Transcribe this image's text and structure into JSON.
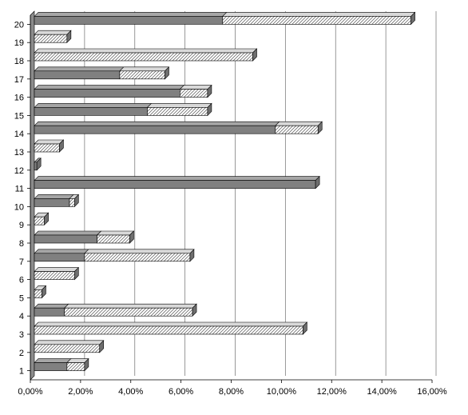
{
  "chart_data": {
    "type": "bar",
    "orientation": "horizontal",
    "stacked": true,
    "three_d": true,
    "title": "",
    "xlabel": "",
    "ylabel": "",
    "categories": [
      "1",
      "2",
      "3",
      "4",
      "5",
      "6",
      "7",
      "8",
      "9",
      "10",
      "11",
      "12",
      "13",
      "14",
      "15",
      "16",
      "17",
      "18",
      "19",
      "20"
    ],
    "series": [
      {
        "color": "#808080",
        "pattern": "solid",
        "values": [
          1.3,
          0.0,
          0.0,
          1.2,
          0.0,
          0.0,
          2.0,
          2.5,
          0.0,
          1.4,
          11.2,
          0.1,
          0.0,
          9.6,
          4.5,
          5.8,
          3.4,
          0.0,
          0.0,
          7.5
        ]
      },
      {
        "color": "#ffffff",
        "pattern": "diagonal-hatch",
        "values": [
          0.7,
          2.6,
          10.7,
          5.1,
          0.3,
          1.6,
          4.2,
          1.3,
          0.4,
          0.2,
          0.0,
          0.0,
          1.0,
          1.7,
          2.4,
          1.1,
          1.8,
          8.7,
          1.3,
          7.5
        ]
      }
    ],
    "xlim": [
      0,
      16
    ],
    "x_ticks": [
      "0,00%",
      "2,00%",
      "4,00%",
      "6,00%",
      "8,00%",
      "10,00%",
      "12,00%",
      "14,00%",
      "16,00%"
    ],
    "grid": "vertical",
    "legend": "none"
  }
}
